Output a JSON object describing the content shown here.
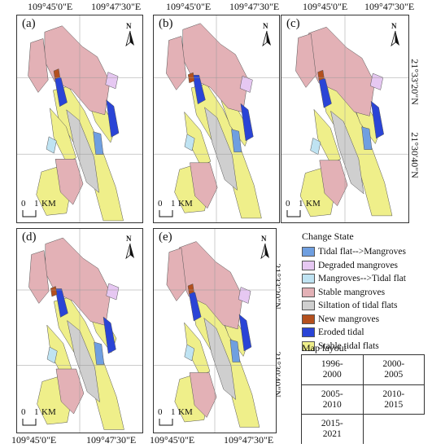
{
  "coords": {
    "top_left": "109°45'0\"E",
    "top_right": "109°47'30\"E",
    "bottom_left": "109°45'0\"E",
    "bottom_right": "109°47'30\"E",
    "lat_upper": "21°33'20\"N",
    "lat_lower": "21°30'40\"N"
  },
  "panels": [
    {
      "label": "(a)"
    },
    {
      "label": "(b)"
    },
    {
      "label": "(c)"
    },
    {
      "label": "(d)"
    },
    {
      "label": "(e)"
    }
  ],
  "north_label": "N",
  "scale": {
    "zero": "0",
    "one": "1",
    "unit": "KM"
  },
  "legend": {
    "title": "Change State",
    "items": [
      {
        "label": "Tidal flat-->Mangroves",
        "color": "#6f9fe0"
      },
      {
        "label": "Degraded mangroves",
        "color": "#e6c8f2"
      },
      {
        "label": "Mangroves-->Tidal flat",
        "color": "#bfe3f2"
      },
      {
        "label": "Stable mangroves",
        "color": "#e3b1b6"
      },
      {
        "label": "Siltation of tidal flats",
        "color": "#cfcfcf"
      },
      {
        "label": "New mangroves",
        "color": "#b4501e"
      },
      {
        "label": "Eroded tidal",
        "color": "#2a44d6"
      },
      {
        "label": "Stable tidal flats",
        "color": "#efef8a"
      }
    ]
  },
  "layout": {
    "title": "Map layout",
    "cells": [
      [
        "1996-\n2000",
        "2000-\n2005"
      ],
      [
        "2005-\n2010",
        "2010-\n2015"
      ],
      [
        "2015-\n2021",
        ""
      ]
    ]
  }
}
